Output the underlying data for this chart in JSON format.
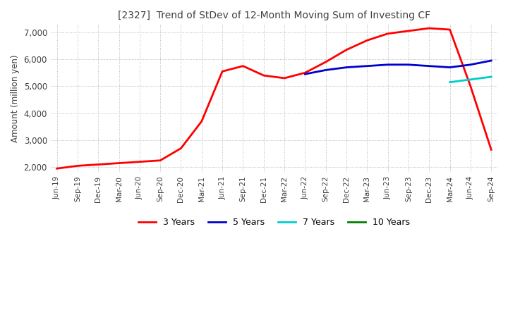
{
  "title": "[2327]  Trend of StDev of 12-Month Moving Sum of Investing CF",
  "ylabel": "Amount (million yen)",
  "ylim": [
    1800,
    7300
  ],
  "yticks": [
    2000,
    3000,
    4000,
    5000,
    6000,
    7000
  ],
  "background_color": "#ffffff",
  "grid_color": "#aaaaaa",
  "title_color": "#404040",
  "x_labels": [
    "Jun-19",
    "Sep-19",
    "Dec-19",
    "Mar-20",
    "Jun-20",
    "Sep-20",
    "Dec-20",
    "Mar-21",
    "Jun-21",
    "Sep-21",
    "Dec-21",
    "Mar-22",
    "Jun-22",
    "Sep-22",
    "Dec-22",
    "Mar-23",
    "Jun-23",
    "Sep-23",
    "Dec-23",
    "Mar-24",
    "Jun-24",
    "Sep-24"
  ],
  "series": {
    "3 Years": {
      "color": "#ff0000",
      "values": [
        1950,
        2050,
        2100,
        2150,
        2200,
        2250,
        2700,
        3700,
        5550,
        5750,
        5400,
        5300,
        5500,
        5900,
        6350,
        6700,
        6950,
        7050,
        7150,
        7100,
        5000,
        2650
      ]
    },
    "5 Years": {
      "color": "#0000cc",
      "values": [
        null,
        null,
        null,
        null,
        null,
        null,
        null,
        null,
        null,
        null,
        null,
        null,
        5450,
        5600,
        5700,
        5750,
        5800,
        5800,
        5750,
        5700,
        5800,
        5950
      ]
    },
    "7 Years": {
      "color": "#00cccc",
      "values": [
        null,
        null,
        null,
        null,
        null,
        null,
        null,
        null,
        null,
        null,
        null,
        null,
        null,
        null,
        null,
        null,
        null,
        null,
        null,
        5150,
        5250,
        5350
      ]
    },
    "10 Years": {
      "color": "#008000",
      "values": [
        null,
        null,
        null,
        null,
        null,
        null,
        null,
        null,
        null,
        null,
        null,
        null,
        null,
        null,
        null,
        null,
        null,
        null,
        null,
        null,
        null,
        null
      ]
    }
  },
  "legend_order": [
    "3 Years",
    "5 Years",
    "7 Years",
    "10 Years"
  ]
}
